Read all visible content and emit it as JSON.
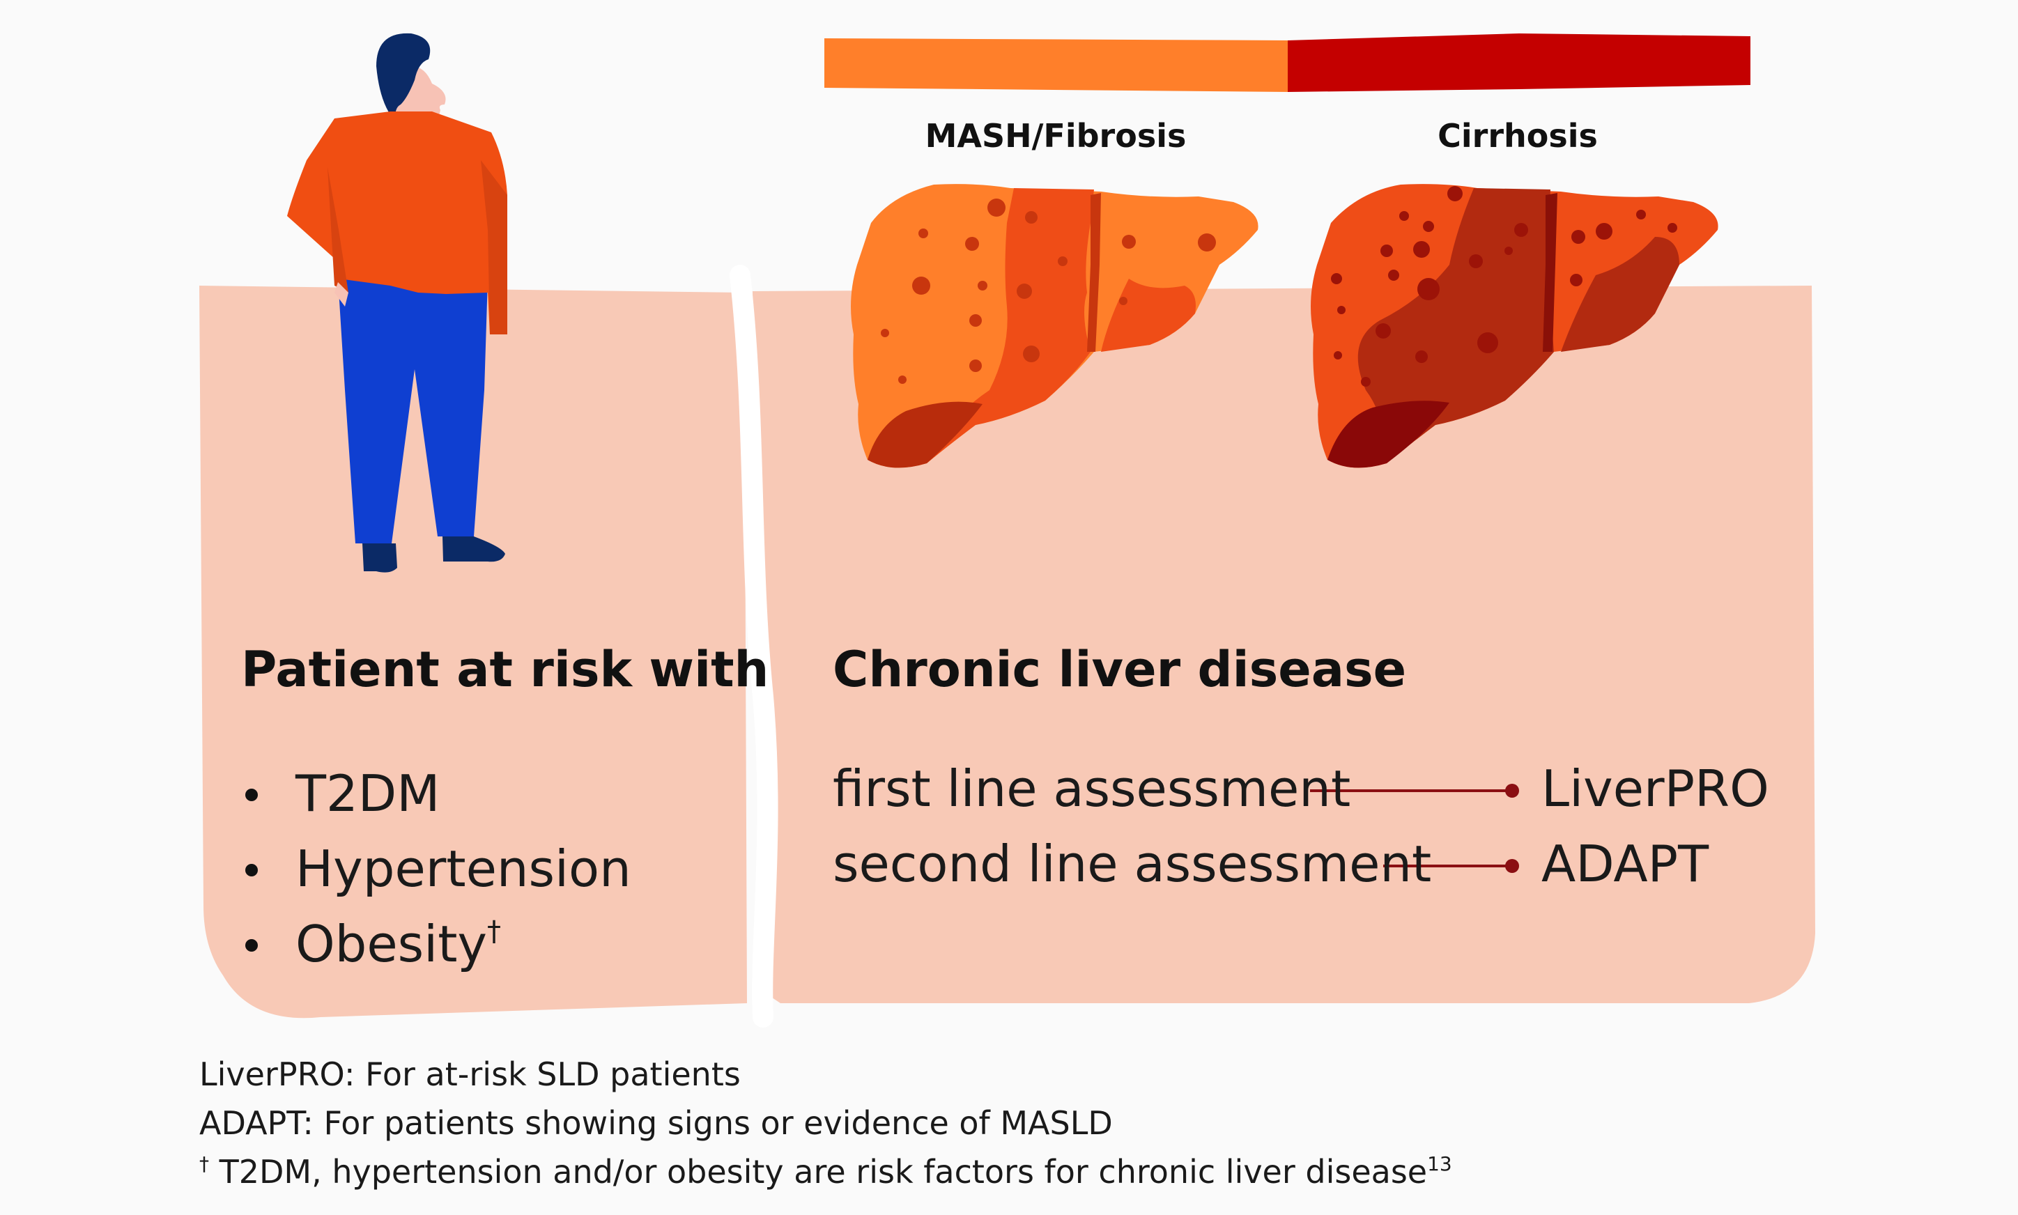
{
  "colors": {
    "panel": "#f8c9b6",
    "bar_early": "#ff7f2a",
    "bar_late": "#c40000",
    "connector": "#8b0f13",
    "shirt": "#f04e12",
    "trousers": "#0f3fd1",
    "hair_and_shoes": "#0b2a66"
  },
  "stages": {
    "mash_fibrosis": "MASH/Fibrosis",
    "cirrhosis": "Cirrhosis"
  },
  "patient": {
    "heading": "Patient at risk with",
    "risks": [
      {
        "label": "T2DM",
        "mark": ""
      },
      {
        "label": "Hypertension",
        "mark": ""
      },
      {
        "label": "Obesity",
        "mark": "†"
      }
    ]
  },
  "disease": {
    "heading": "Chronic liver disease",
    "assessments": [
      {
        "label": "first line assessment",
        "tool": "LiverPRO"
      },
      {
        "label": "second line assessment",
        "tool": "ADAPT"
      }
    ]
  },
  "footnotes": {
    "liverpro": "LiverPRO: For at-risk SLD patients",
    "adapt": "ADAPT: For patients showing signs or evidence of MASLD",
    "dagger_mark": "†",
    "dagger_text": " T2DM, hypertension and/or obesity are risk factors for chronic liver disease",
    "dagger_ref": "13"
  },
  "icons": {
    "patient": "standing-man-icon",
    "liver_early": "liver-fibrosis-icon",
    "liver_late": "liver-cirrhosis-icon"
  }
}
